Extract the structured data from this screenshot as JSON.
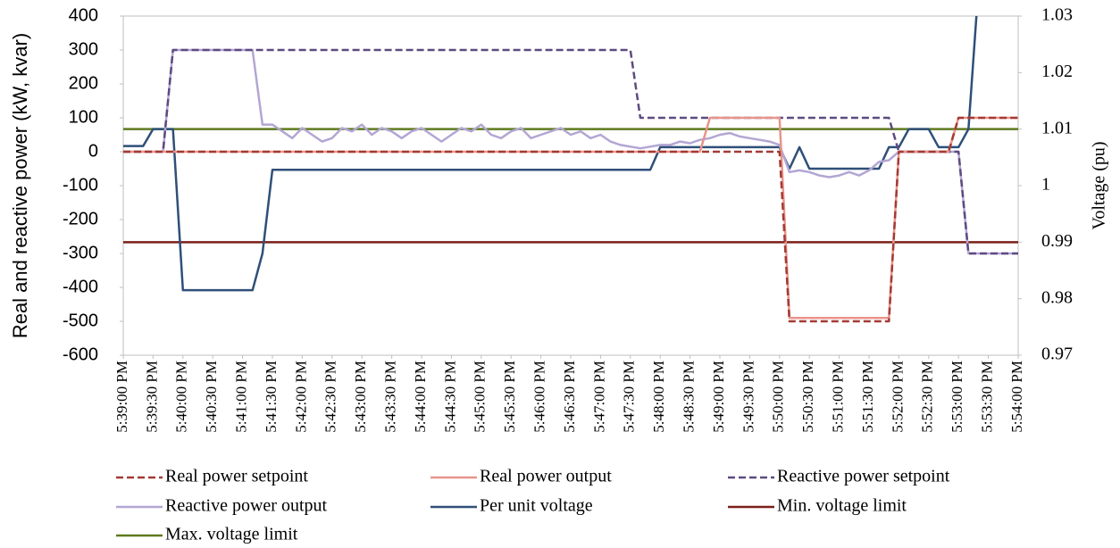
{
  "chart_data": {
    "type": "line",
    "y_label": "Real and reactive power (kW, kvar)",
    "y2_label": "Voltage (pu)",
    "x": [
      "5:39:00 PM",
      "5:39:10 PM",
      "5:39:20 PM",
      "5:39:30 PM",
      "5:39:40 PM",
      "5:39:50 PM",
      "5:40:00 PM",
      "5:40:10 PM",
      "5:40:20 PM",
      "5:40:30 PM",
      "5:40:40 PM",
      "5:40:50 PM",
      "5:41:00 PM",
      "5:41:10 PM",
      "5:41:20 PM",
      "5:41:30 PM",
      "5:41:40 PM",
      "5:41:50 PM",
      "5:42:00 PM",
      "5:42:10 PM",
      "5:42:20 PM",
      "5:42:30 PM",
      "5:42:40 PM",
      "5:42:50 PM",
      "5:43:00 PM",
      "5:43:10 PM",
      "5:43:20 PM",
      "5:43:30 PM",
      "5:43:40 PM",
      "5:43:50 PM",
      "5:44:00 PM",
      "5:44:10 PM",
      "5:44:20 PM",
      "5:44:30 PM",
      "5:44:40 PM",
      "5:44:50 PM",
      "5:45:00 PM",
      "5:45:10 PM",
      "5:45:20 PM",
      "5:45:30 PM",
      "5:45:40 PM",
      "5:45:50 PM",
      "5:46:00 PM",
      "5:46:10 PM",
      "5:46:20 PM",
      "5:46:30 PM",
      "5:46:40 PM",
      "5:46:50 PM",
      "5:47:00 PM",
      "5:47:10 PM",
      "5:47:20 PM",
      "5:47:30 PM",
      "5:47:40 PM",
      "5:47:50 PM",
      "5:48:00 PM",
      "5:48:10 PM",
      "5:48:20 PM",
      "5:48:30 PM",
      "5:48:40 PM",
      "5:48:50 PM",
      "5:49:00 PM",
      "5:49:10 PM",
      "5:49:20 PM",
      "5:49:30 PM",
      "5:49:40 PM",
      "5:49:50 PM",
      "5:50:00 PM",
      "5:50:10 PM",
      "5:50:20 PM",
      "5:50:30 PM",
      "5:50:40 PM",
      "5:50:50 PM",
      "5:51:00 PM",
      "5:51:10 PM",
      "5:51:20 PM",
      "5:51:30 PM",
      "5:51:40 PM",
      "5:51:50 PM",
      "5:52:00 PM",
      "5:52:10 PM",
      "5:52:20 PM",
      "5:52:30 PM",
      "5:52:40 PM",
      "5:52:50 PM",
      "5:53:00 PM",
      "5:53:10 PM",
      "5:53:20 PM",
      "5:53:30 PM",
      "5:53:40 PM",
      "5:53:50 PM",
      "5:54:00 PM"
    ],
    "xlim": [
      "5:39:00 PM",
      "5:54:00 PM"
    ],
    "xticks": [
      "5:39:00 PM",
      "5:39:30 PM",
      "5:40:00 PM",
      "5:40:30 PM",
      "5:41:00 PM",
      "5:41:30 PM",
      "5:42:00 PM",
      "5:42:30 PM",
      "5:43:00 PM",
      "5:43:30 PM",
      "5:44:00 PM",
      "5:44:30 PM",
      "5:45:00 PM",
      "5:45:30 PM",
      "5:46:00 PM",
      "5:46:30 PM",
      "5:47:00 PM",
      "5:47:30 PM",
      "5:48:00 PM",
      "5:48:30 PM",
      "5:49:00 PM",
      "5:49:30 PM",
      "5:50:00 PM",
      "5:50:30 PM",
      "5:51:00 PM",
      "5:51:30 PM",
      "5:52:00 PM",
      "5:52:30 PM",
      "5:53:00 PM",
      "5:53:30 PM",
      "5:54:00 PM"
    ],
    "ylim": [
      -600,
      400
    ],
    "yticks": [
      -600,
      -500,
      -400,
      -300,
      -200,
      -100,
      0,
      100,
      200,
      300,
      400
    ],
    "y2lim": [
      0.97,
      1.03
    ],
    "y2ticks": [
      0.97,
      0.98,
      0.99,
      1,
      1.01,
      1.02,
      1.03
    ],
    "grid": false,
    "legend": "bottom",
    "series": [
      {
        "name": "Real power setpoint",
        "color": "#a33a33",
        "style": "dashed",
        "values": [
          0,
          0,
          0,
          0,
          0,
          0,
          0,
          0,
          0,
          0,
          0,
          0,
          0,
          0,
          0,
          0,
          0,
          0,
          0,
          0,
          0,
          0,
          0,
          0,
          0,
          0,
          0,
          0,
          0,
          0,
          0,
          0,
          0,
          0,
          0,
          0,
          0,
          0,
          0,
          0,
          0,
          0,
          0,
          0,
          0,
          0,
          0,
          0,
          0,
          0,
          0,
          0,
          0,
          0,
          0,
          0,
          0,
          0,
          0,
          0,
          0,
          0,
          0,
          0,
          0,
          0,
          0,
          -500,
          -500,
          -500,
          -500,
          -500,
          -500,
          -500,
          -500,
          -500,
          -500,
          -500,
          0,
          0,
          0,
          0,
          0,
          0,
          100,
          100,
          100,
          100,
          100,
          100,
          100
        ]
      },
      {
        "name": "Real power output",
        "color": "#e8948b",
        "style": "solid",
        "values": [
          0,
          0,
          0,
          0,
          0,
          0,
          0,
          0,
          0,
          0,
          0,
          0,
          0,
          0,
          0,
          0,
          0,
          0,
          0,
          0,
          0,
          0,
          0,
          0,
          0,
          0,
          0,
          0,
          0,
          0,
          0,
          0,
          0,
          0,
          0,
          0,
          0,
          0,
          0,
          0,
          0,
          0,
          0,
          0,
          0,
          0,
          0,
          0,
          0,
          0,
          0,
          0,
          0,
          0,
          0,
          0,
          0,
          0,
          0,
          100,
          100,
          100,
          100,
          100,
          100,
          100,
          100,
          -490,
          -490,
          -490,
          -490,
          -490,
          -490,
          -490,
          -490,
          -490,
          -490,
          -490,
          0,
          0,
          0,
          0,
          0,
          0,
          100,
          100,
          100,
          100,
          100,
          100,
          100
        ]
      },
      {
        "name": "Reactive power setpoint",
        "color": "#5e4a80",
        "style": "dashed",
        "values": [
          0,
          0,
          0,
          0,
          0,
          300,
          300,
          300,
          300,
          300,
          300,
          300,
          300,
          300,
          300,
          300,
          300,
          300,
          300,
          300,
          300,
          300,
          300,
          300,
          300,
          300,
          300,
          300,
          300,
          300,
          300,
          300,
          300,
          300,
          300,
          300,
          300,
          300,
          300,
          300,
          300,
          300,
          300,
          300,
          300,
          300,
          300,
          300,
          300,
          300,
          300,
          300,
          100,
          100,
          100,
          100,
          100,
          100,
          100,
          100,
          100,
          100,
          100,
          100,
          100,
          100,
          100,
          100,
          100,
          100,
          100,
          100,
          100,
          100,
          100,
          100,
          100,
          100,
          0,
          0,
          0,
          0,
          0,
          0,
          0,
          -300,
          -300,
          -300,
          -300,
          -300,
          -300
        ]
      },
      {
        "name": "Reactive power output",
        "color": "#b3a6d3",
        "style": "solid",
        "values": [
          0,
          0,
          0,
          0,
          0,
          300,
          300,
          300,
          300,
          300,
          300,
          300,
          300,
          300,
          80,
          80,
          60,
          40,
          70,
          50,
          30,
          40,
          70,
          60,
          80,
          50,
          70,
          60,
          40,
          60,
          70,
          50,
          30,
          50,
          70,
          60,
          80,
          50,
          40,
          60,
          70,
          40,
          50,
          60,
          70,
          50,
          60,
          40,
          50,
          30,
          20,
          15,
          10,
          15,
          20,
          20,
          30,
          25,
          35,
          40,
          50,
          55,
          45,
          40,
          35,
          30,
          20,
          -60,
          -55,
          -60,
          -70,
          -75,
          -70,
          -60,
          -70,
          -55,
          -30,
          -25,
          0,
          0,
          0,
          0,
          0,
          0,
          0,
          -300,
          -300,
          -300,
          -300,
          -300,
          -300
        ]
      },
      {
        "name": "Per unit voltage",
        "color": "#2f4f78",
        "style": "solid",
        "axis": "y2",
        "values": [
          1.007,
          1.007,
          1.007,
          1.01,
          1.01,
          1.01,
          0.9815,
          0.9815,
          0.9815,
          0.9815,
          0.9815,
          0.9815,
          0.9815,
          0.9815,
          0.988,
          1.0028,
          1.0028,
          1.0028,
          1.0028,
          1.0028,
          1.0028,
          1.0028,
          1.0028,
          1.0028,
          1.0028,
          1.0028,
          1.0028,
          1.0028,
          1.0028,
          1.0028,
          1.0028,
          1.0028,
          1.0028,
          1.0028,
          1.0028,
          1.0028,
          1.0028,
          1.0028,
          1.0028,
          1.0028,
          1.0028,
          1.0028,
          1.0028,
          1.0028,
          1.0028,
          1.0028,
          1.0028,
          1.0028,
          1.0028,
          1.0028,
          1.0028,
          1.0028,
          1.0028,
          1.0028,
          1.0068,
          1.0068,
          1.0068,
          1.0068,
          1.0068,
          1.0068,
          1.0068,
          1.0068,
          1.0068,
          1.0068,
          1.0068,
          1.0068,
          1.0068,
          1.003,
          1.0068,
          1.003,
          1.003,
          1.003,
          1.003,
          1.003,
          1.003,
          1.003,
          1.003,
          1.0068,
          1.0068,
          1.01,
          1.01,
          1.01,
          1.0068,
          1.0068,
          1.0068,
          1.01,
          1.035,
          1.035,
          1.035,
          1.035,
          1.035
        ]
      },
      {
        "name": "Min. voltage limit",
        "color": "#7b1f1a",
        "style": "solid",
        "axis": "y2",
        "values": [
          0.99,
          0.99,
          0.99,
          0.99,
          0.99,
          0.99,
          0.99,
          0.99,
          0.99,
          0.99,
          0.99,
          0.99,
          0.99,
          0.99,
          0.99,
          0.99,
          0.99,
          0.99,
          0.99,
          0.99,
          0.99,
          0.99,
          0.99,
          0.99,
          0.99,
          0.99,
          0.99,
          0.99,
          0.99,
          0.99,
          0.99,
          0.99,
          0.99,
          0.99,
          0.99,
          0.99,
          0.99,
          0.99,
          0.99,
          0.99,
          0.99,
          0.99,
          0.99,
          0.99,
          0.99,
          0.99,
          0.99,
          0.99,
          0.99,
          0.99,
          0.99,
          0.99,
          0.99,
          0.99,
          0.99,
          0.99,
          0.99,
          0.99,
          0.99,
          0.99,
          0.99,
          0.99,
          0.99,
          0.99,
          0.99,
          0.99,
          0.99,
          0.99,
          0.99,
          0.99,
          0.99,
          0.99,
          0.99,
          0.99,
          0.99,
          0.99,
          0.99,
          0.99,
          0.99,
          0.99,
          0.99,
          0.99,
          0.99,
          0.99,
          0.99,
          0.99,
          0.99,
          0.99,
          0.99,
          0.99,
          0.99
        ]
      },
      {
        "name": "Max. voltage limit",
        "color": "#5e7a1e",
        "style": "solid",
        "axis": "y2",
        "values": [
          1.01,
          1.01,
          1.01,
          1.01,
          1.01,
          1.01,
          1.01,
          1.01,
          1.01,
          1.01,
          1.01,
          1.01,
          1.01,
          1.01,
          1.01,
          1.01,
          1.01,
          1.01,
          1.01,
          1.01,
          1.01,
          1.01,
          1.01,
          1.01,
          1.01,
          1.01,
          1.01,
          1.01,
          1.01,
          1.01,
          1.01,
          1.01,
          1.01,
          1.01,
          1.01,
          1.01,
          1.01,
          1.01,
          1.01,
          1.01,
          1.01,
          1.01,
          1.01,
          1.01,
          1.01,
          1.01,
          1.01,
          1.01,
          1.01,
          1.01,
          1.01,
          1.01,
          1.01,
          1.01,
          1.01,
          1.01,
          1.01,
          1.01,
          1.01,
          1.01,
          1.01,
          1.01,
          1.01,
          1.01,
          1.01,
          1.01,
          1.01,
          1.01,
          1.01,
          1.01,
          1.01,
          1.01,
          1.01,
          1.01,
          1.01,
          1.01,
          1.01,
          1.01,
          1.01,
          1.01,
          1.01,
          1.01,
          1.01,
          1.01,
          1.01,
          1.01,
          1.01,
          1.01,
          1.01,
          1.01,
          1.01
        ]
      }
    ]
  }
}
